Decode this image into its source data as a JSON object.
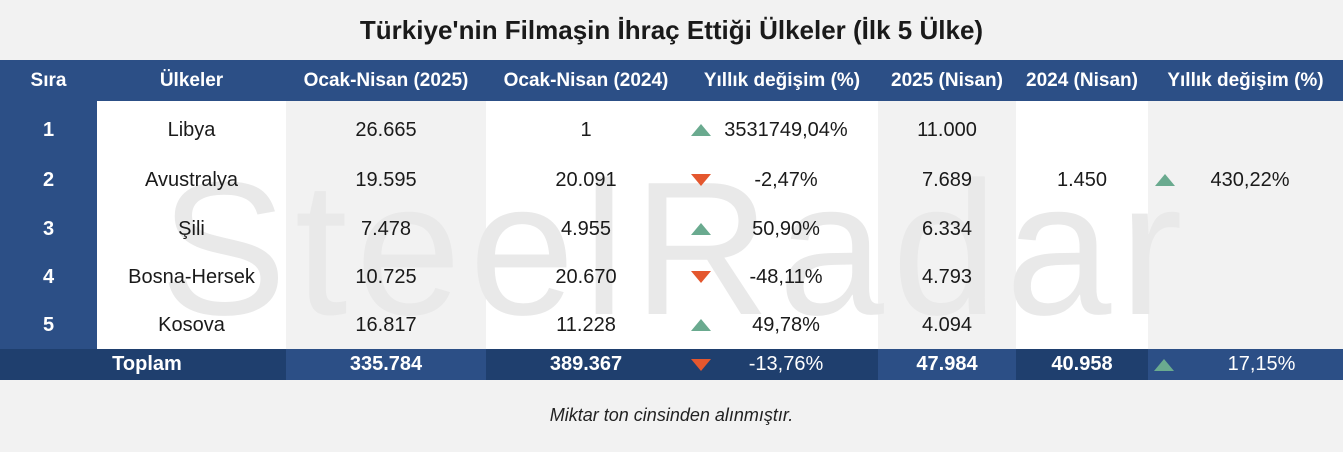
{
  "title": "Türkiye'nin Filmaşin İhraç Ettiği Ülkeler (İlk 5 Ülke)",
  "watermark": "SteelRadar",
  "headers": [
    "Sıra",
    "Ülkeler",
    "Ocak-Nisan (2025)",
    "Ocak-Nisan (2024)",
    "Yıllık değişim (%)",
    "2025 (Nisan)",
    "2024 (Nisan)",
    "Yıllık değişim (%)"
  ],
  "rows": [
    {
      "rank": "1",
      "country": "Libya",
      "jan_apr_2025": "26.665",
      "jan_apr_2024": "1",
      "yoy_change": "3531749,04%",
      "yoy_trend": "up",
      "apr_2025": "11.000",
      "apr_2024": "",
      "apr_yoy_change": "",
      "apr_yoy_trend": ""
    },
    {
      "rank": "2",
      "country": "Avustralya",
      "jan_apr_2025": "19.595",
      "jan_apr_2024": "20.091",
      "yoy_change": "-2,47%",
      "yoy_trend": "down",
      "apr_2025": "7.689",
      "apr_2024": "1.450",
      "apr_yoy_change": "430,22%",
      "apr_yoy_trend": "up"
    },
    {
      "rank": "3",
      "country": "Şili",
      "jan_apr_2025": "7.478",
      "jan_apr_2024": "4.955",
      "yoy_change": "50,90%",
      "yoy_trend": "up",
      "apr_2025": "6.334",
      "apr_2024": "",
      "apr_yoy_change": "",
      "apr_yoy_trend": ""
    },
    {
      "rank": "4",
      "country": "Bosna-Hersek",
      "jan_apr_2025": "10.725",
      "jan_apr_2024": "20.670",
      "yoy_change": "-48,11%",
      "yoy_trend": "down",
      "apr_2025": "4.793",
      "apr_2024": "",
      "apr_yoy_change": "",
      "apr_yoy_trend": ""
    },
    {
      "rank": "5",
      "country": "Kosova",
      "jan_apr_2025": "16.817",
      "jan_apr_2024": "11.228",
      "yoy_change": "49,78%",
      "yoy_trend": "up",
      "apr_2025": "4.094",
      "apr_2024": "",
      "apr_yoy_change": "",
      "apr_yoy_trend": ""
    }
  ],
  "total": {
    "label": "Toplam",
    "jan_apr_2025": "335.784",
    "jan_apr_2024": "389.367",
    "yoy_change": "-13,76%",
    "yoy_trend": "down",
    "apr_2025": "47.984",
    "apr_2024": "40.958",
    "apr_yoy_change": "17,15%",
    "apr_yoy_trend": "up"
  },
  "footnote": "Miktar  ton cinsinden alınmıştır.",
  "colors": {
    "header_blue": "#2c4f86",
    "total_blue": "#1f3f6e",
    "up_green": "#6aaa8f",
    "down_red": "#e4572e"
  },
  "chart_data": {
    "type": "table",
    "title": "Türkiye'nin Filmaşin İhraç Ettiği Ülkeler (İlk 5 Ülke)",
    "columns": [
      "Sıra",
      "Ülkeler",
      "Ocak-Nisan (2025)",
      "Ocak-Nisan (2024)",
      "Yıllık değişim (%)",
      "2025 (Nisan)",
      "2024 (Nisan)",
      "Yıllık değişim (%)"
    ],
    "rows": [
      [
        "1",
        "Libya",
        26665,
        1,
        "3531749,04%",
        11000,
        null,
        null
      ],
      [
        "2",
        "Avustralya",
        19595,
        20091,
        "-2,47%",
        7689,
        1450,
        "430,22%"
      ],
      [
        "3",
        "Şili",
        7478,
        4955,
        "50,90%",
        6334,
        null,
        null
      ],
      [
        "4",
        "Bosna-Hersek",
        10725,
        20670,
        "-48,11%",
        4793,
        null,
        null
      ],
      [
        "5",
        "Kosova",
        16817,
        11228,
        "49,78%",
        4094,
        null,
        null
      ]
    ],
    "total": [
      "Toplam",
      335784,
      389367,
      "-13,76%",
      47984,
      40958,
      "17,15%"
    ]
  }
}
